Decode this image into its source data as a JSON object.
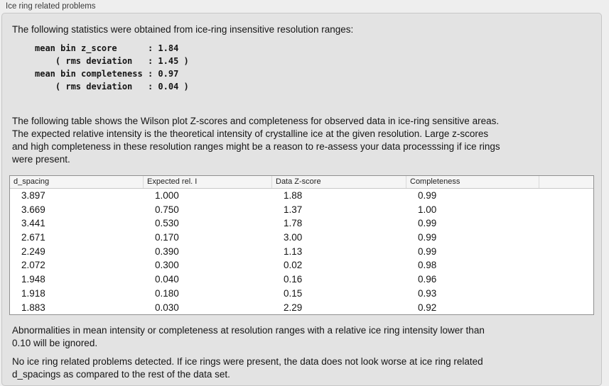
{
  "panel": {
    "title": "Ice ring related problems"
  },
  "intro": "The following statistics were obtained from ice-ring insensitive resolution ranges:",
  "stats_block": "mean bin z_score      : 1.84\n    ( rms deviation   : 1.45 )\nmean bin completeness : 0.97\n    ( rms deviation   : 0.04 )",
  "stats": {
    "mean_bin_z_score": "1.84",
    "z_score_rms_deviation": "1.45",
    "mean_bin_completeness": "0.97",
    "completeness_rms_deviation": "0.04"
  },
  "table_intro": "The following table shows the Wilson plot Z-scores and completeness for observed data in ice-ring sensitive areas.\nThe expected relative intensity is the theoretical intensity of crystalline ice at the given resolution. Large z-scores\nand high completeness in these resolution ranges might be a reason to re-assess your data processsing if ice rings\nwere present.",
  "table": {
    "columns": [
      "d_spacing",
      "Expected rel. I",
      "Data Z-score",
      "Completeness",
      ""
    ],
    "rows": [
      [
        "3.897",
        "1.000",
        "1.88",
        "0.99",
        ""
      ],
      [
        "3.669",
        "0.750",
        "1.37",
        "1.00",
        ""
      ],
      [
        "3.441",
        "0.530",
        "1.78",
        "0.99",
        ""
      ],
      [
        "2.671",
        "0.170",
        "3.00",
        "0.99",
        ""
      ],
      [
        "2.249",
        "0.390",
        "1.13",
        "0.99",
        ""
      ],
      [
        "2.072",
        "0.300",
        "0.02",
        "0.98",
        ""
      ],
      [
        "1.948",
        "0.040",
        "0.16",
        "0.96",
        ""
      ],
      [
        "1.918",
        "0.180",
        "0.15",
        "0.93",
        ""
      ],
      [
        "1.883",
        "0.030",
        "2.29",
        "0.92",
        ""
      ]
    ]
  },
  "note_ignore": "Abnormalities in mean intensity or completeness at resolution ranges with a relative ice ring intensity lower than\n0.10 will be ignored.",
  "conclusion": "No ice ring related problems detected. If ice rings were present, the data does not look worse at ice ring related\nd_spacings as compared to the rest of the data set.",
  "colors": {
    "page_bg": "#eeeeee",
    "panel_bg": "#e3e3e3",
    "panel_border": "#c6c6c6",
    "table_bg": "#ffffff",
    "table_border": "#909090",
    "header_bg": "#f5f5f5",
    "text": "#151515"
  }
}
